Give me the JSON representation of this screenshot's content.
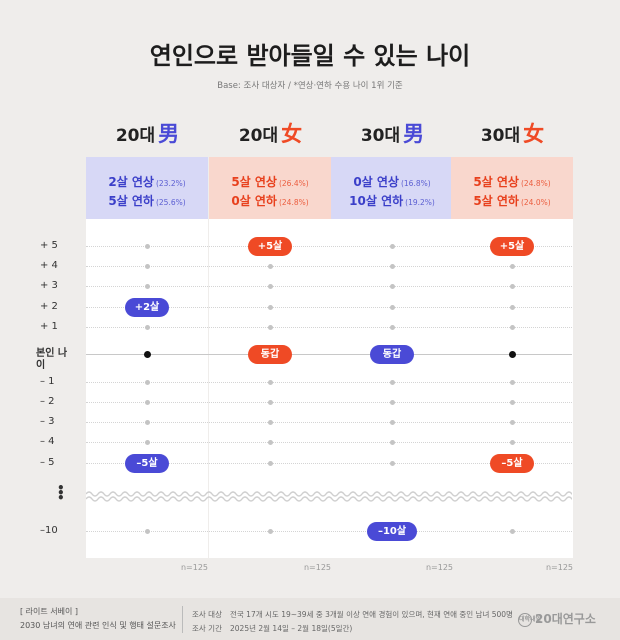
{
  "title": "연인으로 받아들일 수 있는 나이",
  "subtitle": "Base: 조사 대상자   /   *연상·연하 수용 나이 1위 기준",
  "chart_data": {
    "type": "scatter",
    "title": "연인으로 받아들일 수 있는 나이",
    "row_labels": {
      "5": "+ 5",
      "4": "+ 4",
      "3": "+ 3",
      "2": "+ 2",
      "1": "+ 1",
      "0": "본인 나이",
      "-1": "– 1",
      "-2": "– 2",
      "-3": "– 3",
      "-4": "– 4",
      "-5": "– 5",
      "-10": "–10"
    },
    "columns": [
      {
        "age": "20대",
        "gender_char": "男",
        "gender": "male",
        "older": {
          "label": "2살 연상",
          "pct": "(23.2%)"
        },
        "younger": {
          "label": "5살 연하",
          "pct": "(25.6%)"
        },
        "markers": [
          {
            "value": 2,
            "label": "+2살"
          },
          {
            "value": -5,
            "label": "–5살"
          }
        ],
        "self_pill": "",
        "n": "n=125"
      },
      {
        "age": "20대",
        "gender_char": "女",
        "gender": "female",
        "older": {
          "label": "5살 연상",
          "pct": "(26.4%)"
        },
        "younger": {
          "label": "0살 연하",
          "pct": "(24.8%)"
        },
        "markers": [
          {
            "value": 5,
            "label": "+5살"
          },
          {
            "value": 0,
            "label": "동갑"
          }
        ],
        "self_pill": "동갑",
        "n": "n=125"
      },
      {
        "age": "30대",
        "gender_char": "男",
        "gender": "male",
        "older": {
          "label": "0살 연상",
          "pct": "(16.8%)"
        },
        "younger": {
          "label": "10살 연하",
          "pct": "(19.2%)"
        },
        "markers": [
          {
            "value": 0,
            "label": "동갑"
          },
          {
            "value": -10,
            "label": "–10살"
          }
        ],
        "self_pill": "동갑",
        "n": "n=125"
      },
      {
        "age": "30대",
        "gender_char": "女",
        "gender": "female",
        "older": {
          "label": "5살 연상",
          "pct": "(24.8%)"
        },
        "younger": {
          "label": "5살 연하",
          "pct": "(24.0%)"
        },
        "markers": [
          {
            "value": 5,
            "label": "+5살"
          },
          {
            "value": -5,
            "label": "–5살"
          }
        ],
        "self_pill": "",
        "n": "n=125"
      }
    ],
    "colors": {
      "male": "#4a4ad6",
      "female": "#ef4a25"
    }
  },
  "footer": {
    "brand": "[ 라이트 서베이 ]",
    "desc": "2030 남녀의 연애 관련 인식 및 행태 설문조사",
    "target_key": "조사 대상",
    "target_val": "전국 17개 시도 19~39세 중 3개월 이상 연애 경험이 있으며, 현재 연애 중인 남녀 500명",
    "period_key": "조사 기간",
    "period_val": "2025년 2월 14일 – 2월 18일(5일간)",
    "logo_badge": "대학내일",
    "logo_text": "20대연구소"
  }
}
